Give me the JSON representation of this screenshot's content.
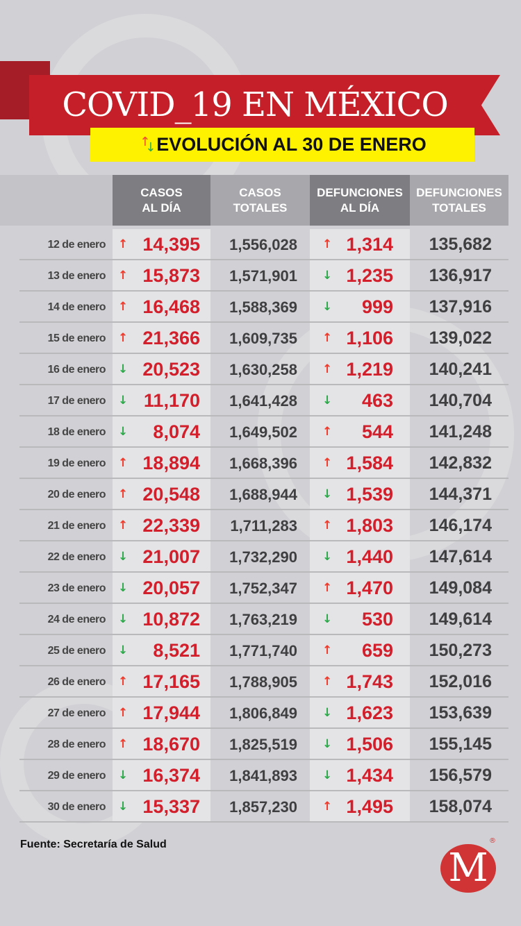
{
  "header": {
    "title": "COVID_19 EN MÉXICO",
    "subtitle": "EVOLUCIÓN AL 30 DE ENERO",
    "trend_icon": "up-down-arrows-icon"
  },
  "colors": {
    "red": "#c52029",
    "yellow": "#fff200",
    "up": "#ef3b2c",
    "down": "#2ea84a"
  },
  "table": {
    "columns": [
      "CASOS\nAL DÍA",
      "CASOS\nTOTALES",
      "DEFUNCIONES\nAL DÍA",
      "DEFUNCIONES\nTOTALES"
    ],
    "rows": [
      {
        "date": "12 de enero",
        "casos_dia": "14,395",
        "casos_trend": "up",
        "casos_totales": "1,556,028",
        "def_dia": "1,314",
        "def_trend": "up",
        "def_totales": "135,682"
      },
      {
        "date": "13 de enero",
        "casos_dia": "15,873",
        "casos_trend": "up",
        "casos_totales": "1,571,901",
        "def_dia": "1,235",
        "def_trend": "down",
        "def_totales": "136,917"
      },
      {
        "date": "14 de enero",
        "casos_dia": "16,468",
        "casos_trend": "up",
        "casos_totales": "1,588,369",
        "def_dia": "999",
        "def_trend": "down",
        "def_totales": "137,916"
      },
      {
        "date": "15 de enero",
        "casos_dia": "21,366",
        "casos_trend": "up",
        "casos_totales": "1,609,735",
        "def_dia": "1,106",
        "def_trend": "up",
        "def_totales": "139,022"
      },
      {
        "date": "16 de enero",
        "casos_dia": "20,523",
        "casos_trend": "down",
        "casos_totales": "1,630,258",
        "def_dia": "1,219",
        "def_trend": "up",
        "def_totales": "140,241"
      },
      {
        "date": "17 de enero",
        "casos_dia": "11,170",
        "casos_trend": "down",
        "casos_totales": "1,641,428",
        "def_dia": "463",
        "def_trend": "down",
        "def_totales": "140,704"
      },
      {
        "date": "18 de enero",
        "casos_dia": "8,074",
        "casos_trend": "down",
        "casos_totales": "1,649,502",
        "def_dia": "544",
        "def_trend": "up",
        "def_totales": "141,248"
      },
      {
        "date": "19 de enero",
        "casos_dia": "18,894",
        "casos_trend": "up",
        "casos_totales": "1,668,396",
        "def_dia": "1,584",
        "def_trend": "up",
        "def_totales": "142,832"
      },
      {
        "date": "20 de enero",
        "casos_dia": "20,548",
        "casos_trend": "up",
        "casos_totales": "1,688,944",
        "def_dia": "1,539",
        "def_trend": "down",
        "def_totales": "144,371"
      },
      {
        "date": "21 de enero",
        "casos_dia": "22,339",
        "casos_trend": "up",
        "casos_totales": "1,711,283",
        "def_dia": "1,803",
        "def_trend": "up",
        "def_totales": "146,174"
      },
      {
        "date": "22 de enero",
        "casos_dia": "21,007",
        "casos_trend": "down",
        "casos_totales": "1,732,290",
        "def_dia": "1,440",
        "def_trend": "down",
        "def_totales": "147,614"
      },
      {
        "date": "23 de enero",
        "casos_dia": "20,057",
        "casos_trend": "down",
        "casos_totales": "1,752,347",
        "def_dia": "1,470",
        "def_trend": "up",
        "def_totales": "149,084"
      },
      {
        "date": "24 de enero",
        "casos_dia": "10,872",
        "casos_trend": "down",
        "casos_totales": "1,763,219",
        "def_dia": "530",
        "def_trend": "down",
        "def_totales": "149,614"
      },
      {
        "date": "25 de enero",
        "casos_dia": "8,521",
        "casos_trend": "down",
        "casos_totales": "1,771,740",
        "def_dia": "659",
        "def_trend": "up",
        "def_totales": "150,273"
      },
      {
        "date": "26 de enero",
        "casos_dia": "17,165",
        "casos_trend": "up",
        "casos_totales": "1,788,905",
        "def_dia": "1,743",
        "def_trend": "up",
        "def_totales": "152,016"
      },
      {
        "date": "27 de enero",
        "casos_dia": "17,944",
        "casos_trend": "up",
        "casos_totales": "1,806,849",
        "def_dia": "1,623",
        "def_trend": "down",
        "def_totales": "153,639"
      },
      {
        "date": "28 de enero",
        "casos_dia": "18,670",
        "casos_trend": "up",
        "casos_totales": "1,825,519",
        "def_dia": "1,506",
        "def_trend": "down",
        "def_totales": "155,145"
      },
      {
        "date": "29 de enero",
        "casos_dia": "16,374",
        "casos_trend": "down",
        "casos_totales": "1,841,893",
        "def_dia": "1,434",
        "def_trend": "down",
        "def_totales": "156,579"
      },
      {
        "date": "30 de enero",
        "casos_dia": "15,337",
        "casos_trend": "down",
        "casos_totales": "1,857,230",
        "def_dia": "1,495",
        "def_trend": "up",
        "def_totales": "158,074"
      }
    ]
  },
  "footer": {
    "source": "Fuente: Secretaría de Salud",
    "logo_letter": "M",
    "registered": "®"
  }
}
